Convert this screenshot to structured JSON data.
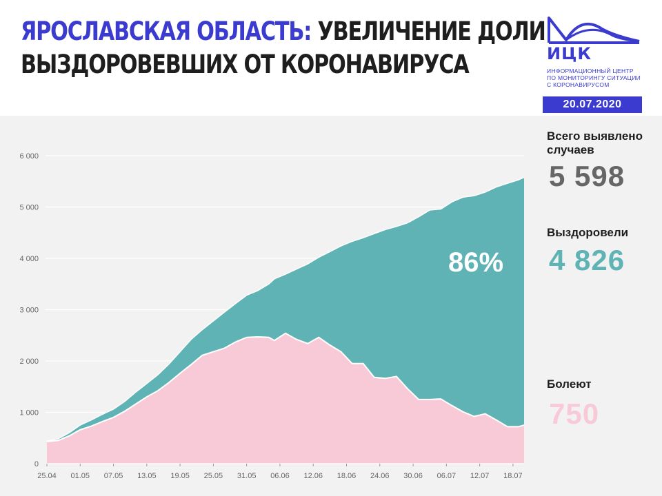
{
  "header": {
    "title_region": "ЯРОСЛАВСКАЯ ОБЛАСТЬ:",
    "title_rest_line1": "УВЕЛИЧЕНИЕ ДОЛИ",
    "title_line2": "ВЫЗДОРОВЕВШИХ ОТ КОРОНАВИРУСА",
    "logo_name": "ИЦК",
    "logo_subtitle": [
      "ИНФОРМАЦИОННЫЙ ЦЕНТР",
      "ПО МОНИТОРИНГУ СИТУАЦИИ",
      "С КОРОНАВИРУСОМ"
    ],
    "date": "20.07.2020"
  },
  "stats": {
    "total_label": "Всего выявлено случаев",
    "total_value": "5 598",
    "recovered_label": "Выздоровели",
    "recovered_value": "4 826",
    "sick_label": "Болеют",
    "sick_value": "750"
  },
  "colors": {
    "brand": "#3b3bd0",
    "recovered": "#5fb3b4",
    "sick": "#f8cad7",
    "total_value": "#666666"
  },
  "chart_data": {
    "type": "area",
    "stacked": true,
    "annotation": "86%",
    "ylim": [
      0,
      6000
    ],
    "yticks": [
      0,
      1000,
      2000,
      3000,
      4000,
      5000,
      6000
    ],
    "ytick_labels": [
      "0",
      "1 000",
      "2 000",
      "3 000",
      "4 000",
      "5 000",
      "6 000"
    ],
    "xtick_labels": [
      "25.04",
      "01.05",
      "07.05",
      "13.05",
      "19.05",
      "25.05",
      "31.05",
      "06.06",
      "12.06",
      "18.06",
      "24.06",
      "30.06",
      "06.07",
      "12.07",
      "18.07"
    ],
    "grid": "horizontal",
    "x_start": "2020-04-25",
    "x_end": "2020-07-20",
    "series": [
      {
        "name": "Болеют",
        "color": "#f8cad7",
        "points": [
          [
            "2020-04-25",
            430
          ],
          [
            "2020-04-27",
            450
          ],
          [
            "2020-04-29",
            540
          ],
          [
            "2020-05-01",
            660
          ],
          [
            "2020-05-03",
            730
          ],
          [
            "2020-05-05",
            820
          ],
          [
            "2020-05-07",
            900
          ],
          [
            "2020-05-09",
            1020
          ],
          [
            "2020-05-11",
            1160
          ],
          [
            "2020-05-13",
            1300
          ],
          [
            "2020-05-15",
            1420
          ],
          [
            "2020-05-17",
            1580
          ],
          [
            "2020-05-19",
            1760
          ],
          [
            "2020-05-21",
            1930
          ],
          [
            "2020-05-23",
            2110
          ],
          [
            "2020-05-25",
            2180
          ],
          [
            "2020-05-27",
            2250
          ],
          [
            "2020-05-29",
            2370
          ],
          [
            "2020-05-31",
            2460
          ],
          [
            "2020-06-02",
            2470
          ],
          [
            "2020-06-04",
            2460
          ],
          [
            "2020-06-05",
            2400
          ],
          [
            "2020-06-07",
            2540
          ],
          [
            "2020-06-09",
            2420
          ],
          [
            "2020-06-11",
            2340
          ],
          [
            "2020-06-13",
            2460
          ],
          [
            "2020-06-15",
            2310
          ],
          [
            "2020-06-17",
            2180
          ],
          [
            "2020-06-19",
            1950
          ],
          [
            "2020-06-21",
            1950
          ],
          [
            "2020-06-23",
            1680
          ],
          [
            "2020-06-25",
            1660
          ],
          [
            "2020-06-27",
            1700
          ],
          [
            "2020-06-29",
            1460
          ],
          [
            "2020-07-01",
            1250
          ],
          [
            "2020-07-03",
            1250
          ],
          [
            "2020-07-05",
            1260
          ],
          [
            "2020-07-07",
            1130
          ],
          [
            "2020-07-09",
            1010
          ],
          [
            "2020-07-11",
            920
          ],
          [
            "2020-07-13",
            970
          ],
          [
            "2020-07-15",
            850
          ],
          [
            "2020-07-17",
            720
          ],
          [
            "2020-07-19",
            720
          ],
          [
            "2020-07-20",
            750
          ]
        ]
      },
      {
        "name": "Выздоровели",
        "color": "#5fb3b4",
        "points": [
          [
            "2020-04-25",
            10
          ],
          [
            "2020-04-27",
            30
          ],
          [
            "2020-04-29",
            60
          ],
          [
            "2020-05-01",
            90
          ],
          [
            "2020-05-03",
            120
          ],
          [
            "2020-05-05",
            140
          ],
          [
            "2020-05-07",
            160
          ],
          [
            "2020-05-09",
            190
          ],
          [
            "2020-05-11",
            230
          ],
          [
            "2020-05-13",
            260
          ],
          [
            "2020-05-15",
            310
          ],
          [
            "2020-05-17",
            360
          ],
          [
            "2020-05-19",
            420
          ],
          [
            "2020-05-21",
            490
          ],
          [
            "2020-05-23",
            500
          ],
          [
            "2020-05-25",
            600
          ],
          [
            "2020-05-27",
            700
          ],
          [
            "2020-05-29",
            750
          ],
          [
            "2020-05-31",
            820
          ],
          [
            "2020-06-02",
            900
          ],
          [
            "2020-06-04",
            1040
          ],
          [
            "2020-06-05",
            1200
          ],
          [
            "2020-06-07",
            1150
          ],
          [
            "2020-06-09",
            1370
          ],
          [
            "2020-06-11",
            1550
          ],
          [
            "2020-06-13",
            1560
          ],
          [
            "2020-06-15",
            1820
          ],
          [
            "2020-06-17",
            2060
          ],
          [
            "2020-06-19",
            2380
          ],
          [
            "2020-06-21",
            2450
          ],
          [
            "2020-06-23",
            2800
          ],
          [
            "2020-06-25",
            2900
          ],
          [
            "2020-06-27",
            2920
          ],
          [
            "2020-06-29",
            3230
          ],
          [
            "2020-07-01",
            3560
          ],
          [
            "2020-07-03",
            3690
          ],
          [
            "2020-07-05",
            3700
          ],
          [
            "2020-07-07",
            3970
          ],
          [
            "2020-07-09",
            4180
          ],
          [
            "2020-07-11",
            4300
          ],
          [
            "2020-07-13",
            4320
          ],
          [
            "2020-07-15",
            4540
          ],
          [
            "2020-07-17",
            4740
          ],
          [
            "2020-07-19",
            4810
          ],
          [
            "2020-07-20",
            4826
          ]
        ]
      }
    ]
  }
}
